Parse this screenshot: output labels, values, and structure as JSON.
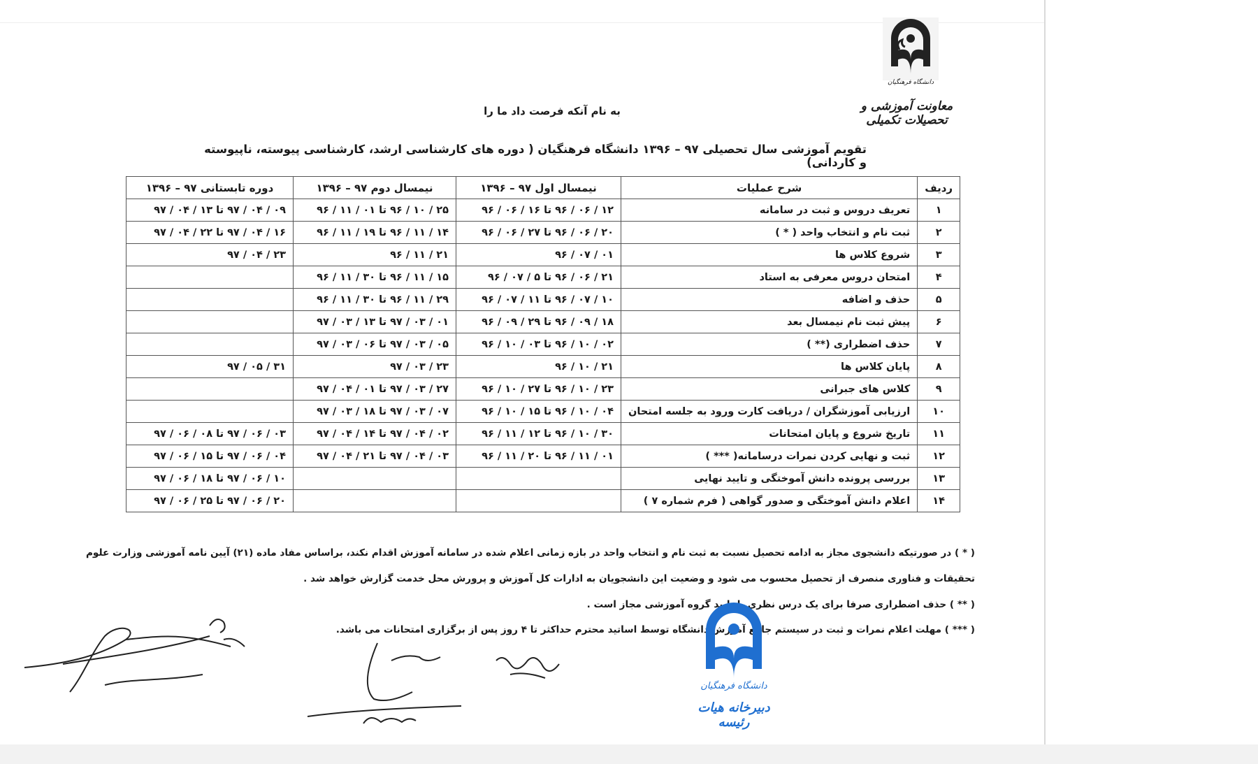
{
  "header": {
    "logo_lettering": "دانشگاه فرهنگیان",
    "department": "معاونت آموزشی و تحصیلات تکمیلی",
    "invocation": "به نام آنکه فرصت داد ما را",
    "title": "تقویم آموزشی سال تحصیلی ۹۷ – ۱۳۹۶ دانشگاه فرهنگیان ( دوره های کارشناسی ارشد، کارشناسی پیوسته، ناپیوسته و کاردانی)"
  },
  "table": {
    "columns": [
      "ردیف",
      "شرح عملیات",
      "نیمسال اول ۹۷ – ۱۳۹۶",
      "نیمسال دوم ۹۷ – ۱۳۹۶",
      "دوره تابستانی ۹۷ – ۱۳۹۶"
    ],
    "rows": [
      {
        "no": "۱",
        "desc": "تعریف دروس و ثبت در سامانه",
        "s1": "۱۲ / ۰۶ / ۹۶ تا ۱۶ / ۰۶ / ۹۶",
        "s2": "۲۵ / ۱۰ / ۹۶ تا ۰۱ / ۱۱ / ۹۶",
        "summer": "۰۹ / ۰۴ / ۹۷ تا ۱۳ / ۰۴ / ۹۷"
      },
      {
        "no": "۲",
        "desc": "ثبت نام و انتخاب واحد ( * )",
        "s1": "۲۰ / ۰۶ / ۹۶ تا ۲۷ / ۰۶ / ۹۶",
        "s2": "۱۴ / ۱۱ / ۹۶ تا ۱۹ / ۱۱ / ۹۶",
        "summer": "۱۶ / ۰۴ / ۹۷ تا ۲۲ / ۰۴ / ۹۷"
      },
      {
        "no": "۳",
        "desc": "شروع کلاس ها",
        "s1": "۰۱ / ۰۷ / ۹۶",
        "s2": "۲۱ / ۱۱ / ۹۶",
        "summer": "۲۳ / ۰۴ / ۹۷"
      },
      {
        "no": "۴",
        "desc": "امتحان دروس معرفی به استاد",
        "s1": "۲۱ / ۰۶ / ۹۶ تا ۵ / ۰۷ / ۹۶",
        "s2": "۱۵ / ۱۱ / ۹۶ تا ۳۰ / ۱۱ / ۹۶",
        "summer": ""
      },
      {
        "no": "۵",
        "desc": "حذف و اضافه",
        "s1": "۱۰ / ۰۷ / ۹۶ تا ۱۱ / ۰۷ / ۹۶",
        "s2": "۲۹ / ۱۱ / ۹۶ تا ۳۰ / ۱۱ / ۹۶",
        "summer": ""
      },
      {
        "no": "۶",
        "desc": "پیش ثبت نام نیمسال بعد",
        "s1": "۱۸ / ۰۹ / ۹۶ تا ۲۹ / ۰۹ / ۹۶",
        "s2": "۰۱ / ۰۳ / ۹۷ تا ۱۳ / ۰۳ / ۹۷",
        "summer": ""
      },
      {
        "no": "۷",
        "desc": "حذف اضطراری (** )",
        "s1": "۰۲ / ۱۰ / ۹۶ تا ۰۳ / ۱۰ / ۹۶",
        "s2": "۰۵ / ۰۳ / ۹۷ تا ۰۶ / ۰۳ / ۹۷",
        "summer": ""
      },
      {
        "no": "۸",
        "desc": "پایان کلاس ها",
        "s1": "۲۱ / ۱۰ / ۹۶",
        "s2": "۲۳ / ۰۳ / ۹۷",
        "summer": "۳۱ / ۰۵ / ۹۷"
      },
      {
        "no": "۹",
        "desc": "کلاس های جبرانی",
        "s1": "۲۳ / ۱۰ / ۹۶ تا ۲۷ / ۱۰ / ۹۶",
        "s2": "۲۷ / ۰۳ / ۹۷ تا ۰۱ / ۰۴ / ۹۷",
        "summer": ""
      },
      {
        "no": "۱۰",
        "desc": "ارزیابی آموزشگران / دریافت کارت ورود به جلسه امتحان",
        "s1": "۰۴ / ۱۰ / ۹۶ تا ۱۵ / ۱۰ / ۹۶",
        "s2": "۰۷ / ۰۳ / ۹۷ تا ۱۸ / ۰۳ / ۹۷",
        "summer": ""
      },
      {
        "no": "۱۱",
        "desc": "تاریخ شروع و پایان امتحانات",
        "s1": "۳۰ / ۱۰ / ۹۶ تا ۱۲ / ۱۱ / ۹۶",
        "s2": "۰۲ / ۰۴ / ۹۷ تا ۱۴ / ۰۴ / ۹۷",
        "summer": "۰۳ / ۰۶ / ۹۷ تا ۰۸ / ۰۶ / ۹۷"
      },
      {
        "no": "۱۲",
        "desc": "ثبت و نهایی کردن نمرات درسامانه( *** )",
        "s1": "۰۱ / ۱۱ / ۹۶ تا ۲۰ / ۱۱ / ۹۶",
        "s2": "۰۳ / ۰۴ / ۹۷ تا ۲۱ / ۰۴ / ۹۷",
        "summer": "۰۴ / ۰۶ / ۹۷ تا ۱۵ / ۰۶ / ۹۷"
      },
      {
        "no": "۱۳",
        "desc": "بررسی پرونده دانش آموختگی و تایید نهایی",
        "s1": "",
        "s2": "",
        "summer": "۱۰ / ۰۶ / ۹۷ تا ۱۸ / ۰۶ / ۹۷"
      },
      {
        "no": "۱۴",
        "desc": "اعلام دانش آموختگی و صدور گواهی ( فرم شماره ۷ )",
        "s1": "",
        "s2": "",
        "summer": "۲۰ / ۰۶ / ۹۷ تا ۲۵ / ۰۶ / ۹۷"
      }
    ]
  },
  "footnotes": [
    "( * ) در صورتیکه دانشجوی مجاز به ادامه تحصیل نسبت به ثبت نام و انتخاب واحد در بازه زمانی اعلام شده در سامانه آموزش اقدام نکند، براساس مفاد ماده (۲۱) آیین نامه آموزشی وزارت علوم",
    "تحقیقات و فناوری منصرف از تحصیل محسوب می شود و وضعیت این دانشجویان به ادارات کل آموزش و پرورش محل خدمت گزارش خواهد شد .",
    "( ** ) حذف اضطراری صرفا برای یک درس نظری با تایید گروه آموزشی مجاز است .",
    "( *** ) مهلت اعلام نمرات و ثبت در سیستم جامع آموزش دانشگاه توسط اساتید محترم حداکثر تا ۴ روز پس از برگزاری امتحانات می باشد."
  ],
  "stamp": {
    "lettering_1": "دانشگاه فرهنگیان",
    "lettering_2": "دبیرخانه هیات رئیسه",
    "color": "#1f6fd0"
  }
}
